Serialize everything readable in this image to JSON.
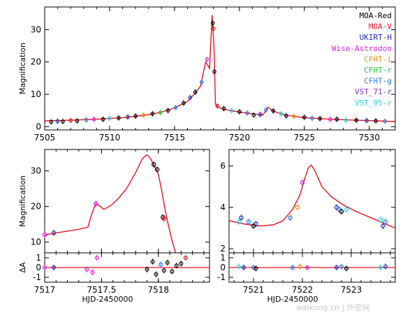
{
  "chart_data": [
    {
      "type": "scatter",
      "panel": "overview",
      "ylabel": "Magnification",
      "xlabel": "",
      "xlim": [
        7505,
        7532
      ],
      "ylim": [
        -1,
        37
      ],
      "xticks": [
        7505,
        7510,
        7515,
        7520,
        7525,
        7530
      ],
      "yticks": [
        0,
        10,
        20,
        30
      ],
      "legend_position": "top-right",
      "legend": [
        {
          "name": "MOA-Red",
          "color": "#000000"
        },
        {
          "name": "MOA-V",
          "color": "#e8141e"
        },
        {
          "name": "UKIRT-H",
          "color": "#1f2db8"
        },
        {
          "name": "Wise-Astrodon",
          "color": "#e620e6"
        },
        {
          "name": "CFHT-i",
          "color": "#f08c14"
        },
        {
          "name": "CFHT-r",
          "color": "#1ec83c"
        },
        {
          "name": "CFHT-g",
          "color": "#2d7de6"
        },
        {
          "name": "VST_71-r",
          "color": "#8c28c8"
        },
        {
          "name": "VST_95-r",
          "color": "#28d2e6"
        }
      ],
      "model": {
        "name": "",
        "color": "#e8141e",
        "x": [
          7505,
          7507,
          7509,
          7511,
          7512,
          7513,
          7514,
          7515,
          7516,
          7516.5,
          7517,
          7517.4,
          7517.7,
          7517.9,
          7518.05,
          7518.15,
          7518.3,
          7518.6,
          7519,
          7520,
          7521,
          7521.8,
          7522.2,
          7522.6,
          7523.5,
          7525,
          7527,
          7529,
          7532
        ],
        "y": [
          1.8,
          2.0,
          2.3,
          2.8,
          3.2,
          3.7,
          4.5,
          5.8,
          7.8,
          10,
          12.5,
          20,
          18,
          34.5,
          24,
          7,
          6.2,
          5.6,
          5.2,
          4.5,
          4,
          3.6,
          6,
          4.8,
          3.6,
          2.8,
          2.3,
          2.0,
          1.6
        ]
      },
      "points": [
        {
          "x": 7505.5,
          "y": 1.5,
          "s": 0
        },
        {
          "x": 7506.0,
          "y": 1.7,
          "s": 2
        },
        {
          "x": 7506.4,
          "y": 1.6,
          "s": 0
        },
        {
          "x": 7507.0,
          "y": 1.9,
          "s": 1
        },
        {
          "x": 7507.5,
          "y": 1.8,
          "s": 0
        },
        {
          "x": 7508.2,
          "y": 2.1,
          "s": 6
        },
        {
          "x": 7508.8,
          "y": 2.3,
          "s": 3
        },
        {
          "x": 7509.5,
          "y": 2.3,
          "s": 0
        },
        {
          "x": 7510.0,
          "y": 2.6,
          "s": 8
        },
        {
          "x": 7510.7,
          "y": 2.7,
          "s": 0
        },
        {
          "x": 7511.4,
          "y": 3.0,
          "s": 2
        },
        {
          "x": 7512.0,
          "y": 3.3,
          "s": 0
        },
        {
          "x": 7512.6,
          "y": 3.6,
          "s": 4
        },
        {
          "x": 7513.3,
          "y": 4.0,
          "s": 0
        },
        {
          "x": 7513.9,
          "y": 4.4,
          "s": 5
        },
        {
          "x": 7514.5,
          "y": 5.0,
          "s": 0
        },
        {
          "x": 7515.1,
          "y": 5.9,
          "s": 6
        },
        {
          "x": 7515.7,
          "y": 7.3,
          "s": 0
        },
        {
          "x": 7516.2,
          "y": 9.0,
          "s": 2
        },
        {
          "x": 7516.6,
          "y": 10.7,
          "s": 0
        },
        {
          "x": 7517.1,
          "y": 13.8,
          "s": 6
        },
        {
          "x": 7517.5,
          "y": 20.8,
          "s": 3
        },
        {
          "x": 7517.95,
          "y": 32.0,
          "s": 0
        },
        {
          "x": 7518.0,
          "y": 30.3,
          "s": 1
        },
        {
          "x": 7518.07,
          "y": 17.0,
          "s": 0
        },
        {
          "x": 7518.3,
          "y": 6.4,
          "s": 1
        },
        {
          "x": 7518.8,
          "y": 5.6,
          "s": 0
        },
        {
          "x": 7519.4,
          "y": 5.0,
          "s": 8
        },
        {
          "x": 7520.0,
          "y": 4.6,
          "s": 0
        },
        {
          "x": 7520.6,
          "y": 4.2,
          "s": 6
        },
        {
          "x": 7521.1,
          "y": 3.6,
          "s": 0
        },
        {
          "x": 7521.6,
          "y": 3.8,
          "s": 2
        },
        {
          "x": 7522.05,
          "y": 5.2,
          "s": 6
        },
        {
          "x": 7522.6,
          "y": 4.9,
          "s": 0
        },
        {
          "x": 7523.2,
          "y": 4.0,
          "s": 8
        },
        {
          "x": 7523.6,
          "y": 3.4,
          "s": 0
        },
        {
          "x": 7524.2,
          "y": 3.2,
          "s": 4
        },
        {
          "x": 7525.0,
          "y": 2.9,
          "s": 0
        },
        {
          "x": 7525.6,
          "y": 2.6,
          "s": 6
        },
        {
          "x": 7526.2,
          "y": 2.5,
          "s": 0
        },
        {
          "x": 7527.0,
          "y": 2.3,
          "s": 3
        },
        {
          "x": 7527.5,
          "y": 2.3,
          "s": 0
        },
        {
          "x": 7528.2,
          "y": 2.0,
          "s": 8
        },
        {
          "x": 7529.0,
          "y": 2.0,
          "s": 0
        },
        {
          "x": 7529.8,
          "y": 1.9,
          "s": 2
        },
        {
          "x": 7530.5,
          "y": 1.8,
          "s": 0
        },
        {
          "x": 7531.2,
          "y": 1.7,
          "s": 6
        }
      ]
    },
    {
      "type": "scatter",
      "panel": "zoom-left",
      "ylabel": "Magnification",
      "xlabel": "HJD-2450000",
      "xlim": [
        7517,
        7518.45
      ],
      "ylim": [
        7,
        36
      ],
      "xticks": [
        7517,
        7517.5,
        7518
      ],
      "yticks": [
        10,
        20,
        30
      ],
      "model": {
        "name": "",
        "color": "#e8141e",
        "x": [
          7517.0,
          7517.1,
          7517.2,
          7517.3,
          7517.38,
          7517.42,
          7517.45,
          7517.48,
          7517.52,
          7517.58,
          7517.65,
          7517.72,
          7517.8,
          7517.86,
          7517.9,
          7517.93,
          7517.97,
          7518.0,
          7518.03,
          7518.06,
          7518.09,
          7518.12,
          7518.15,
          7518.17,
          7518.2,
          7518.3,
          7518.4,
          7518.45
        ],
        "y": [
          12.0,
          12.6,
          13.1,
          13.6,
          14.2,
          18.5,
          20.8,
          20.2,
          19.2,
          20.2,
          22.3,
          25.0,
          29.5,
          33.5,
          34.5,
          33.5,
          31.0,
          29.0,
          24.5,
          19.0,
          14.5,
          10.5,
          7.1,
          6.7,
          6.5,
          6.3,
          6.2,
          6.2
        ]
      },
      "points": [
        {
          "x": 7517.0,
          "y": 12.1,
          "s": 3
        },
        {
          "x": 7517.08,
          "y": 12.6,
          "s": 2
        },
        {
          "x": 7517.45,
          "y": 20.8,
          "s": 3
        },
        {
          "x": 7517.96,
          "y": 31.8,
          "s": 0
        },
        {
          "x": 7517.99,
          "y": 30.4,
          "s": 0
        },
        {
          "x": 7518.04,
          "y": 17.0,
          "s": 0
        },
        {
          "x": 7518.05,
          "y": 16.6,
          "s": 1
        },
        {
          "x": 7518.1,
          "y": 6.6,
          "s": 2
        },
        {
          "x": 7518.15,
          "y": 6.5,
          "s": 0
        },
        {
          "x": 7518.2,
          "y": 6.6,
          "s": 0
        },
        {
          "x": 7518.24,
          "y": 6.9,
          "s": 1
        }
      ],
      "residuals": {
        "ylabel": "ΔA",
        "ylim": [
          -1.5,
          1.5
        ],
        "yticks": [
          -1,
          0,
          1
        ],
        "points": [
          {
            "x": 7517.0,
            "y": 0.0,
            "s": 3
          },
          {
            "x": 7517.08,
            "y": 0.0,
            "s": 2
          },
          {
            "x": 7517.37,
            "y": -0.2,
            "s": 3
          },
          {
            "x": 7517.42,
            "y": -0.5,
            "s": 3
          },
          {
            "x": 7517.46,
            "y": 1.0,
            "s": 3
          },
          {
            "x": 7517.9,
            "y": -0.2,
            "s": 0
          },
          {
            "x": 7517.95,
            "y": 0.6,
            "s": 0
          },
          {
            "x": 7517.98,
            "y": -0.7,
            "s": 0
          },
          {
            "x": 7518.02,
            "y": 0.3,
            "s": 6
          },
          {
            "x": 7518.05,
            "y": -0.3,
            "s": 0
          },
          {
            "x": 7518.08,
            "y": 0.5,
            "s": 0
          },
          {
            "x": 7518.12,
            "y": -0.4,
            "s": 0
          },
          {
            "x": 7518.16,
            "y": 0.2,
            "s": 0
          },
          {
            "x": 7518.2,
            "y": 0.4,
            "s": 0
          },
          {
            "x": 7518.24,
            "y": 1.0,
            "s": 1
          }
        ]
      }
    },
    {
      "type": "scatter",
      "panel": "zoom-right",
      "ylabel": "",
      "xlabel": "HJD-2450000",
      "xlim": [
        7520.5,
        7523.9
      ],
      "ylim": [
        1.8,
        6.8
      ],
      "xticks": [
        7521,
        7522,
        7523
      ],
      "yticks": [
        2,
        4,
        6
      ],
      "model": {
        "name": "",
        "color": "#e8141e",
        "x": [
          7520.5,
          7520.8,
          7521.1,
          7521.4,
          7521.6,
          7521.8,
          7521.95,
          7522.05,
          7522.12,
          7522.18,
          7522.25,
          7522.4,
          7522.6,
          7522.85,
          7523.1,
          7523.4,
          7523.7,
          7523.9
        ],
        "y": [
          3.35,
          3.2,
          3.1,
          3.15,
          3.35,
          3.9,
          4.6,
          5.4,
          5.9,
          6.05,
          5.8,
          5.0,
          4.5,
          4.1,
          3.8,
          3.5,
          3.2,
          3.0
        ]
      },
      "points": [
        {
          "x": 7520.7,
          "y": 3.3,
          "s": 8
        },
        {
          "x": 7520.75,
          "y": 3.5,
          "s": 2
        },
        {
          "x": 7520.9,
          "y": 3.3,
          "s": 6
        },
        {
          "x": 7521.0,
          "y": 3.1,
          "s": 0
        },
        {
          "x": 7521.05,
          "y": 3.2,
          "s": 2
        },
        {
          "x": 7521.75,
          "y": 3.5,
          "s": 6
        },
        {
          "x": 7521.9,
          "y": 4.0,
          "s": 4
        },
        {
          "x": 7522.0,
          "y": 5.2,
          "s": 3
        },
        {
          "x": 7522.7,
          "y": 4.0,
          "s": 2
        },
        {
          "x": 7522.75,
          "y": 3.9,
          "s": 6
        },
        {
          "x": 7522.8,
          "y": 3.8,
          "s": 0
        },
        {
          "x": 7522.9,
          "y": 3.9,
          "s": 8
        },
        {
          "x": 7523.6,
          "y": 3.4,
          "s": 8
        },
        {
          "x": 7523.65,
          "y": 3.1,
          "s": 2
        },
        {
          "x": 7523.7,
          "y": 3.3,
          "s": 6
        }
      ],
      "residuals": {
        "ylabel": "",
        "ylim": [
          -1.5,
          1.5
        ],
        "yticks": [
          -1,
          0,
          1
        ],
        "points": [
          {
            "x": 7520.7,
            "y": 0.1,
            "s": 8
          },
          {
            "x": 7520.8,
            "y": 0.0,
            "s": 2
          },
          {
            "x": 7521.0,
            "y": 0.0,
            "s": 6
          },
          {
            "x": 7521.05,
            "y": -0.1,
            "s": 0
          },
          {
            "x": 7521.8,
            "y": 0.0,
            "s": 6
          },
          {
            "x": 7521.95,
            "y": 0.1,
            "s": 4
          },
          {
            "x": 7522.1,
            "y": 0.0,
            "s": 3
          },
          {
            "x": 7522.7,
            "y": 0.0,
            "s": 2
          },
          {
            "x": 7522.8,
            "y": 0.1,
            "s": 6
          },
          {
            "x": 7522.9,
            "y": -0.1,
            "s": 0
          },
          {
            "x": 7523.6,
            "y": 0.0,
            "s": 8
          },
          {
            "x": 7523.7,
            "y": 0.1,
            "s": 2
          }
        ]
      }
    }
  ],
  "watermark": "walkong.cn | 外空网"
}
